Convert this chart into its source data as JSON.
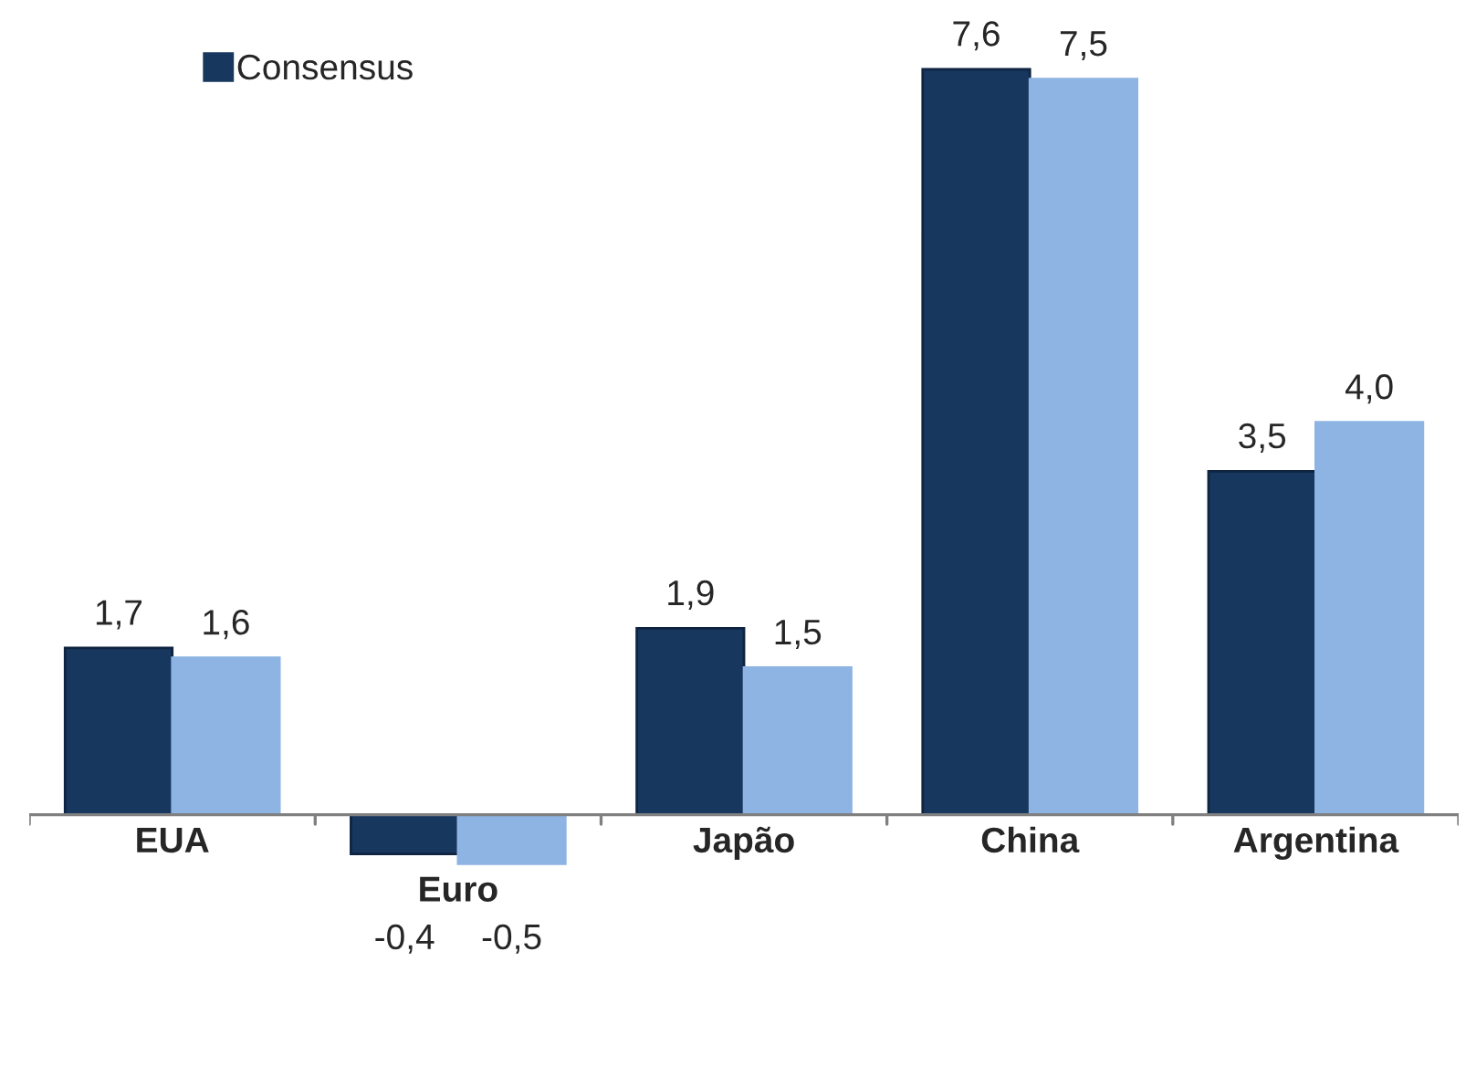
{
  "chart_data": {
    "type": "bar",
    "categories": [
      "EUA",
      "Euro",
      "Japão",
      "China",
      "Argentina"
    ],
    "series": [
      {
        "name": "Consensus",
        "color": "#17375e",
        "values": [
          1.7,
          -0.4,
          1.9,
          7.6,
          3.5
        ],
        "value_labels": [
          "1,7",
          "-0,4",
          "1,9",
          "7,6",
          "3,5"
        ]
      },
      {
        "color": "#8db4e2",
        "values": [
          1.6,
          -0.5,
          1.5,
          7.5,
          4.0
        ],
        "value_labels": [
          "1,6",
          "-0,5",
          "1,5",
          "7,5",
          "4,0"
        ]
      }
    ],
    "legend": "top left"
  }
}
